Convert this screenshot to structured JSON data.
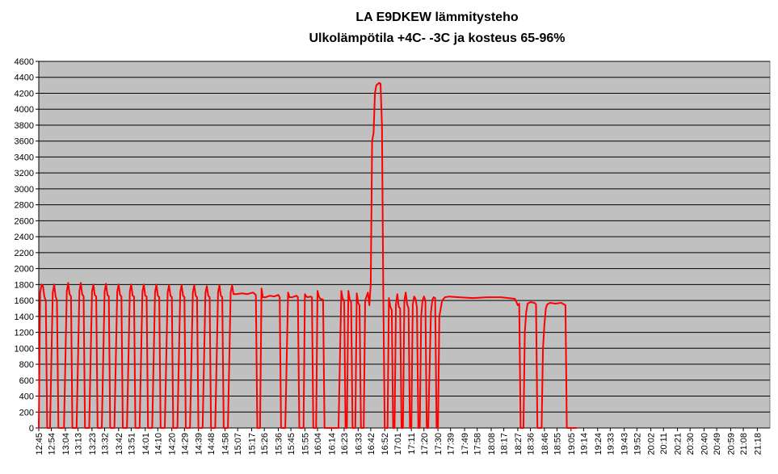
{
  "chart_data": {
    "type": "line",
    "title": "LA E9DKEW lämmitysteho",
    "subtitle": "Ulkolämpötila +4C- -3C ja kosteus 65-96%",
    "xlabel": "",
    "ylabel": "",
    "ylim": [
      0,
      4600
    ],
    "yticks": [
      0,
      200,
      400,
      600,
      800,
      1000,
      1200,
      1400,
      1600,
      1800,
      2000,
      2200,
      2400,
      2600,
      2800,
      3000,
      3200,
      3400,
      3600,
      3800,
      4000,
      4200,
      4400,
      4600
    ],
    "x_tick_labels": [
      "12:45",
      "12:54",
      "13:04",
      "13:13",
      "13:23",
      "13:32",
      "13:42",
      "13:51",
      "14:01",
      "14:10",
      "14:20",
      "14:29",
      "14:39",
      "14:48",
      "14:58",
      "15:07",
      "15:17",
      "15:26",
      "15:36",
      "15:45",
      "15:55",
      "16:04",
      "16:14",
      "16:23",
      "16:33",
      "16:42",
      "16:52",
      "17:01",
      "17:11",
      "17:20",
      "17:30",
      "17:39",
      "17:49",
      "17:58",
      "18:08",
      "18:17",
      "18:27",
      "18:36",
      "18:46",
      "18:55",
      "19:05",
      "19:14",
      "19:24",
      "19:33",
      "19:43",
      "19:52",
      "20:02",
      "20:11",
      "20:21",
      "20:30",
      "20:40",
      "20:49",
      "20:59",
      "21:08",
      "21:18"
    ],
    "grid": true,
    "plot_background": "#C0C0C0",
    "series": [
      {
        "color": "#FF0000",
        "points": [
          [
            "12:45",
            0
          ],
          [
            "12:46",
            1700
          ],
          [
            "12:47",
            1800
          ],
          [
            "12:48",
            1780
          ],
          [
            "12:49",
            1650
          ],
          [
            "12:50",
            1600
          ],
          [
            "12:51",
            0
          ],
          [
            "12:53",
            0
          ],
          [
            "12:55",
            1700
          ],
          [
            "12:56",
            1800
          ],
          [
            "12:57",
            1650
          ],
          [
            "12:58",
            1600
          ],
          [
            "12:59",
            0
          ],
          [
            "13:03",
            0
          ],
          [
            "13:05",
            1720
          ],
          [
            "13:06",
            1820
          ],
          [
            "13:07",
            1680
          ],
          [
            "13:08",
            1650
          ],
          [
            "13:09",
            0
          ],
          [
            "13:12",
            0
          ],
          [
            "13:14",
            1720
          ],
          [
            "13:15",
            1820
          ],
          [
            "13:16",
            1680
          ],
          [
            "13:17",
            1650
          ],
          [
            "13:18",
            0
          ],
          [
            "13:21",
            0
          ],
          [
            "13:23",
            1710
          ],
          [
            "13:24",
            1800
          ],
          [
            "13:25",
            1670
          ],
          [
            "13:26",
            1650
          ],
          [
            "13:27",
            0
          ],
          [
            "13:30",
            0
          ],
          [
            "13:32",
            1710
          ],
          [
            "13:33",
            1810
          ],
          [
            "13:34",
            1670
          ],
          [
            "13:35",
            1650
          ],
          [
            "13:36",
            0
          ],
          [
            "13:39",
            0
          ],
          [
            "13:41",
            1710
          ],
          [
            "13:42",
            1800
          ],
          [
            "13:43",
            1670
          ],
          [
            "13:44",
            1650
          ],
          [
            "13:45",
            0
          ],
          [
            "13:48",
            0
          ],
          [
            "13:50",
            1710
          ],
          [
            "13:51",
            1800
          ],
          [
            "13:52",
            1660
          ],
          [
            "13:53",
            1650
          ],
          [
            "13:54",
            0
          ],
          [
            "13:57",
            0
          ],
          [
            "13:59",
            1710
          ],
          [
            "14:00",
            1800
          ],
          [
            "14:01",
            1660
          ],
          [
            "14:02",
            1650
          ],
          [
            "14:03",
            0
          ],
          [
            "14:06",
            0
          ],
          [
            "14:08",
            1700
          ],
          [
            "14:09",
            1800
          ],
          [
            "14:10",
            1660
          ],
          [
            "14:11",
            1640
          ],
          [
            "14:12",
            0
          ],
          [
            "14:15",
            0
          ],
          [
            "14:17",
            1700
          ],
          [
            "14:18",
            1790
          ],
          [
            "14:19",
            1660
          ],
          [
            "14:20",
            1640
          ],
          [
            "14:21",
            0
          ],
          [
            "14:24",
            0
          ],
          [
            "14:26",
            1700
          ],
          [
            "14:27",
            1790
          ],
          [
            "14:28",
            1660
          ],
          [
            "14:29",
            1640
          ],
          [
            "14:30",
            0
          ],
          [
            "14:33",
            0
          ],
          [
            "14:35",
            1700
          ],
          [
            "14:36",
            1790
          ],
          [
            "14:37",
            1660
          ],
          [
            "14:38",
            1640
          ],
          [
            "14:39",
            0
          ],
          [
            "14:42",
            0
          ],
          [
            "14:44",
            1700
          ],
          [
            "14:45",
            1780
          ],
          [
            "14:46",
            1660
          ],
          [
            "14:47",
            1640
          ],
          [
            "14:48",
            0
          ],
          [
            "14:51",
            0
          ],
          [
            "14:53",
            1700
          ],
          [
            "14:54",
            1790
          ],
          [
            "14:55",
            1660
          ],
          [
            "14:56",
            1640
          ],
          [
            "14:57",
            0
          ],
          [
            "15:00",
            0
          ],
          [
            "15:02",
            1700
          ],
          [
            "15:03",
            1790
          ],
          [
            "15:04",
            1680
          ],
          [
            "15:06",
            1680
          ],
          [
            "15:10",
            1690
          ],
          [
            "15:14",
            1680
          ],
          [
            "15:18",
            1700
          ],
          [
            "15:20",
            1670
          ],
          [
            "15:21",
            0
          ],
          [
            "15:23",
            0
          ],
          [
            "15:24",
            1750
          ],
          [
            "15:25",
            1640
          ],
          [
            "15:27",
            1640
          ],
          [
            "15:30",
            1660
          ],
          [
            "15:33",
            1650
          ],
          [
            "15:36",
            1670
          ],
          [
            "15:37",
            1640
          ],
          [
            "15:38",
            0
          ],
          [
            "15:41",
            0
          ],
          [
            "15:43",
            1700
          ],
          [
            "15:44",
            1640
          ],
          [
            "15:46",
            1640
          ],
          [
            "15:49",
            1660
          ],
          [
            "15:50",
            1640
          ],
          [
            "15:51",
            0
          ],
          [
            "15:54",
            0
          ],
          [
            "15:55",
            1680
          ],
          [
            "15:56",
            1650
          ],
          [
            "15:57",
            1640
          ],
          [
            "15:59",
            1650
          ],
          [
            "16:00",
            1640
          ],
          [
            "16:01",
            0
          ],
          [
            "16:03",
            0
          ],
          [
            "16:04",
            1720
          ],
          [
            "16:05",
            1650
          ],
          [
            "16:06",
            1620
          ],
          [
            "16:08",
            1610
          ],
          [
            "16:09",
            0
          ],
          [
            "16:19",
            0
          ],
          [
            "16:21",
            1720
          ],
          [
            "16:22",
            1620
          ],
          [
            "16:23",
            1600
          ],
          [
            "16:24",
            0
          ],
          [
            "16:25",
            0
          ],
          [
            "16:26",
            1720
          ],
          [
            "16:27",
            1610
          ],
          [
            "16:28",
            1580
          ],
          [
            "16:29",
            0
          ],
          [
            "16:31",
            0
          ],
          [
            "16:32",
            1690
          ],
          [
            "16:33",
            1570
          ],
          [
            "16:34",
            1540
          ],
          [
            "16:35",
            0
          ],
          [
            "16:37",
            0
          ],
          [
            "16:38",
            1600
          ],
          [
            "16:40",
            1700
          ],
          [
            "16:41",
            1540
          ],
          [
            "16:42",
            1800
          ],
          [
            "16:43",
            3600
          ],
          [
            "16:44",
            3700
          ],
          [
            "16:45",
            4200
          ],
          [
            "16:46",
            4300
          ],
          [
            "16:48",
            4330
          ],
          [
            "16:49",
            4320
          ],
          [
            "16:50",
            3800
          ],
          [
            "16:51",
            1600
          ],
          [
            "16:52",
            0
          ],
          [
            "16:54",
            0
          ],
          [
            "16:55",
            1630
          ],
          [
            "16:56",
            1520
          ],
          [
            "16:57",
            1480
          ],
          [
            "16:58",
            0
          ],
          [
            "16:59",
            0
          ],
          [
            "17:00",
            1550
          ],
          [
            "17:01",
            1680
          ],
          [
            "17:02",
            1520
          ],
          [
            "17:03",
            1500
          ],
          [
            "17:04",
            0
          ],
          [
            "17:05",
            0
          ],
          [
            "17:06",
            1600
          ],
          [
            "17:07",
            1700
          ],
          [
            "17:08",
            1550
          ],
          [
            "17:09",
            1500
          ],
          [
            "17:10",
            0
          ],
          [
            "17:11",
            0
          ],
          [
            "17:12",
            1550
          ],
          [
            "17:13",
            1650
          ],
          [
            "17:14",
            1620
          ],
          [
            "17:15",
            1510
          ],
          [
            "17:16",
            0
          ],
          [
            "17:17",
            0
          ],
          [
            "17:18",
            1400
          ],
          [
            "17:19",
            1600
          ],
          [
            "17:20",
            1650
          ],
          [
            "17:21",
            1600
          ],
          [
            "17:22",
            0
          ],
          [
            "17:23",
            0
          ],
          [
            "17:25",
            1450
          ],
          [
            "17:26",
            1610
          ],
          [
            "17:27",
            1640
          ],
          [
            "17:28",
            1630
          ],
          [
            "17:29",
            0
          ],
          [
            "17:30",
            0
          ],
          [
            "17:31",
            1400
          ],
          [
            "17:33",
            1600
          ],
          [
            "17:35",
            1640
          ],
          [
            "17:38",
            1650
          ],
          [
            "17:45",
            1640
          ],
          [
            "17:55",
            1630
          ],
          [
            "18:05",
            1640
          ],
          [
            "18:15",
            1640
          ],
          [
            "18:25",
            1620
          ],
          [
            "18:27",
            1540
          ],
          [
            "18:28",
            1560
          ],
          [
            "18:29",
            0
          ],
          [
            "18:31",
            0
          ],
          [
            "18:32",
            1200
          ],
          [
            "18:33",
            1450
          ],
          [
            "18:34",
            1560
          ],
          [
            "18:36",
            1580
          ],
          [
            "18:39",
            1570
          ],
          [
            "18:40",
            1550
          ],
          [
            "18:41",
            0
          ],
          [
            "18:44",
            0
          ],
          [
            "18:45",
            1000
          ],
          [
            "18:46",
            1300
          ],
          [
            "18:47",
            1500
          ],
          [
            "18:48",
            1550
          ],
          [
            "18:50",
            1570
          ],
          [
            "18:54",
            1560
          ],
          [
            "18:58",
            1570
          ],
          [
            "19:00",
            1550
          ],
          [
            "19:01",
            1540
          ],
          [
            "19:02",
            0
          ],
          [
            "19:09",
            0
          ]
        ]
      }
    ]
  }
}
